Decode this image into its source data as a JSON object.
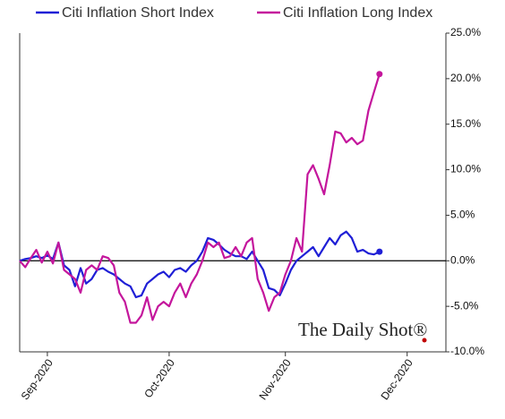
{
  "chart_data": {
    "type": "line",
    "watermark": "The Daily Shot®",
    "legend": "top",
    "categories": [
      null,
      null,
      null,
      null,
      null,
      "Sep-2020",
      null,
      null,
      null,
      null,
      null,
      null,
      null,
      null,
      null,
      null,
      null,
      null,
      null,
      null,
      null,
      null,
      null,
      null,
      null,
      null,
      null,
      "Oct-2020",
      null,
      null,
      null,
      null,
      null,
      null,
      null,
      null,
      null,
      null,
      null,
      null,
      null,
      null,
      null,
      null,
      null,
      null,
      null,
      null,
      "Nov-2020",
      null,
      null,
      null,
      null,
      null,
      null,
      null,
      null,
      null,
      null,
      null,
      null,
      null,
      null,
      null,
      null,
      null,
      null,
      null,
      null,
      null,
      "Dec-2020",
      null,
      null,
      null,
      null,
      null,
      null,
      null
    ],
    "series": [
      {
        "name": "Citi Inflation Short Index",
        "color": "#1f1fd6",
        "values": [
          0,
          0.2,
          0.3,
          0.5,
          0.3,
          0.6,
          0.2,
          2.0,
          -0.5,
          -1.0,
          -2.8,
          -0.8,
          -2.5,
          -2.0,
          -1.0,
          -0.8,
          -1.2,
          -1.5,
          -2.0,
          -2.5,
          -2.8,
          -4.0,
          -3.8,
          -2.5,
          -2.0,
          -1.5,
          -1.2,
          -1.8,
          -1.0,
          -0.8,
          -1.2,
          -0.5,
          0.0,
          1.0,
          2.5,
          2.3,
          1.8,
          1.2,
          0.8,
          0.5,
          0.5,
          0.2,
          1.0,
          0.0,
          -1.0,
          -3.0,
          -3.2,
          -3.8,
          -2.5,
          -1.0,
          0.0,
          0.5,
          1.0,
          1.5,
          0.5,
          1.5,
          2.5,
          1.8,
          2.8,
          3.2,
          2.5,
          1.0,
          1.2,
          0.8,
          0.7,
          1.0,
          null,
          null,
          null,
          null,
          null,
          null,
          null,
          null,
          null,
          null,
          null,
          null
        ]
      },
      {
        "name": "Citi Inflation Long Index",
        "color": "#c4169c",
        "values": [
          0,
          -0.7,
          0.3,
          1.2,
          -0.2,
          1.0,
          -0.3,
          2.0,
          -1.0,
          -1.5,
          -2.0,
          -3.5,
          -1.0,
          -0.5,
          -1.0,
          0.5,
          0.3,
          -0.5,
          -3.5,
          -4.5,
          -6.8,
          -6.8,
          -6.0,
          -4.0,
          -6.5,
          -5.0,
          -4.5,
          -5.0,
          -3.5,
          -2.5,
          -4.0,
          -2.5,
          -1.5,
          0.0,
          2.0,
          1.5,
          2.0,
          0.3,
          0.5,
          1.5,
          0.5,
          2.0,
          2.5,
          -2.0,
          -3.5,
          -5.5,
          -4.0,
          -3.5,
          -1.5,
          0.0,
          2.5,
          1.0,
          9.5,
          10.5,
          9.0,
          7.3,
          10.5,
          14.2,
          14.0,
          13.0,
          13.5,
          12.8,
          13.2,
          16.5,
          18.5,
          20.5,
          null,
          null,
          null,
          null,
          null,
          null,
          null,
          null,
          null,
          null,
          null,
          null
        ]
      }
    ],
    "ylim": [
      -10,
      25
    ],
    "yticks": [
      {
        "value": -10,
        "label": "-10.0%"
      },
      {
        "value": -5,
        "label": "-5.0%"
      },
      {
        "value": 0,
        "label": "0.0%"
      },
      {
        "value": 5,
        "label": "5.0%"
      },
      {
        "value": 10,
        "label": "10.0%"
      },
      {
        "value": 15,
        "label": "15.0%"
      },
      {
        "value": 20,
        "label": "20.0%"
      },
      {
        "value": 25,
        "label": "25.0%"
      }
    ]
  }
}
